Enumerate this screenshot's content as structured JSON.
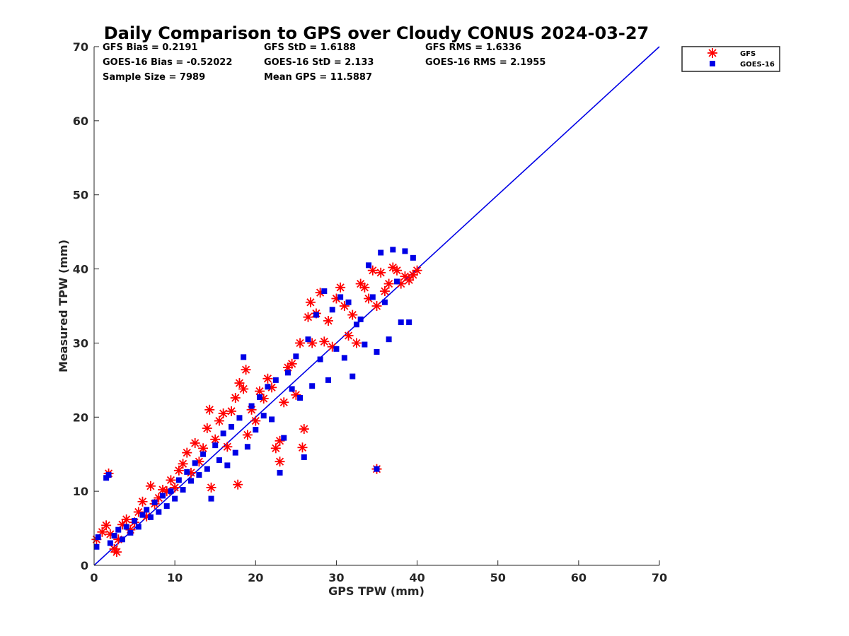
{
  "chart_data": {
    "type": "scatter",
    "title": "Daily Comparison to GPS over Cloudy CONUS 2024-03-27",
    "xlabel": "GPS TPW (mm)",
    "ylabel": "Measured TPW (mm)",
    "xlim": [
      0,
      70
    ],
    "ylim": [
      0,
      70
    ],
    "xticks": [
      0,
      10,
      20,
      30,
      40,
      50,
      60,
      70
    ],
    "yticks": [
      0,
      10,
      20,
      30,
      40,
      50,
      60,
      70
    ],
    "grid": false,
    "legend_position": "outside top-right",
    "stats": [
      [
        "GFS Bias = 0.2191",
        "GFS StD = 1.6188",
        "GFS RMS = 1.6336"
      ],
      [
        "GOES-16 Bias = -0.52022",
        "GOES-16 StD = 2.133",
        "GOES-16 RMS = 2.1955"
      ],
      [
        "Sample Size = 7989",
        "Mean GPS = 11.5887",
        ""
      ]
    ],
    "reference_line": {
      "x": [
        0,
        70
      ],
      "y": [
        0,
        70
      ],
      "color": "#0000e6"
    },
    "series": [
      {
        "name": "GFS",
        "marker": "asterisk",
        "color": "#ff0000",
        "points": [
          [
            0.3,
            3.5
          ],
          [
            1,
            4.5
          ],
          [
            1.5,
            5.4
          ],
          [
            1.8,
            12.4
          ],
          [
            2,
            4.2
          ],
          [
            2.5,
            2.2
          ],
          [
            2.8,
            1.8
          ],
          [
            3,
            3.5
          ],
          [
            3.5,
            5.5
          ],
          [
            4,
            6.2
          ],
          [
            4.5,
            4.8
          ],
          [
            5,
            5.8
          ],
          [
            5.5,
            7.2
          ],
          [
            6,
            8.6
          ],
          [
            6.5,
            6.6
          ],
          [
            7,
            10.7
          ],
          [
            7.5,
            8.3
          ],
          [
            8,
            9.1
          ],
          [
            8.5,
            10.2
          ],
          [
            9,
            10
          ],
          [
            9.5,
            11.5
          ],
          [
            10,
            10.5
          ],
          [
            10.5,
            12.8
          ],
          [
            11,
            13.7
          ],
          [
            11.5,
            15.2
          ],
          [
            12,
            12.5
          ],
          [
            12.5,
            16.5
          ],
          [
            13,
            14
          ],
          [
            13.5,
            15.8
          ],
          [
            14,
            18.5
          ],
          [
            14.3,
            21
          ],
          [
            14.5,
            10.5
          ],
          [
            15,
            17
          ],
          [
            15.5,
            19.5
          ],
          [
            16,
            20.5
          ],
          [
            16.5,
            16
          ],
          [
            17,
            20.8
          ],
          [
            17.5,
            22.6
          ],
          [
            17.8,
            10.9
          ],
          [
            18,
            24.6
          ],
          [
            18.5,
            23.8
          ],
          [
            18.8,
            26.4
          ],
          [
            19,
            17.6
          ],
          [
            19.5,
            21
          ],
          [
            20,
            19.5
          ],
          [
            20.5,
            23.5
          ],
          [
            21,
            22.5
          ],
          [
            21.5,
            25.2
          ],
          [
            22,
            24
          ],
          [
            22.5,
            15.8
          ],
          [
            23,
            14
          ],
          [
            23,
            16.8
          ],
          [
            23.5,
            22
          ],
          [
            24,
            26.7
          ],
          [
            24.5,
            27.2
          ],
          [
            25,
            23
          ],
          [
            25.5,
            30
          ],
          [
            25.8,
            15.9
          ],
          [
            26,
            18.4
          ],
          [
            26.5,
            33.5
          ],
          [
            26.8,
            35.5
          ],
          [
            27,
            30
          ],
          [
            27.5,
            34
          ],
          [
            28,
            36.8
          ],
          [
            28.5,
            30.2
          ],
          [
            29,
            33
          ],
          [
            29.5,
            29.5
          ],
          [
            30,
            36
          ],
          [
            30.5,
            37.5
          ],
          [
            31,
            35
          ],
          [
            31.5,
            31
          ],
          [
            32,
            33.8
          ],
          [
            32.5,
            30
          ],
          [
            33,
            38
          ],
          [
            33.5,
            37.5
          ],
          [
            34,
            36
          ],
          [
            34.5,
            39.8
          ],
          [
            35,
            35
          ],
          [
            35,
            13
          ],
          [
            35.5,
            39.5
          ],
          [
            36,
            37
          ],
          [
            36.5,
            38
          ],
          [
            37,
            40.2
          ],
          [
            37.5,
            39.8
          ],
          [
            38,
            38
          ],
          [
            38.5,
            39
          ],
          [
            39,
            38.5
          ],
          [
            39.5,
            39.2
          ],
          [
            40,
            39.8
          ]
        ]
      },
      {
        "name": "GOES-16",
        "marker": "square",
        "color": "#0000e6",
        "points": [
          [
            0.3,
            2.5
          ],
          [
            0.5,
            3.8
          ],
          [
            1.5,
            11.8
          ],
          [
            1.8,
            12.2
          ],
          [
            2,
            3
          ],
          [
            2.5,
            4
          ],
          [
            3,
            4.8
          ],
          [
            3.5,
            3.5
          ],
          [
            4,
            5.2
          ],
          [
            4.5,
            4.4
          ],
          [
            5,
            6
          ],
          [
            5.5,
            5.2
          ],
          [
            6,
            6.8
          ],
          [
            6.5,
            7.5
          ],
          [
            7,
            6.5
          ],
          [
            7.5,
            8.5
          ],
          [
            8,
            7.2
          ],
          [
            8.5,
            9.4
          ],
          [
            9,
            8
          ],
          [
            9.5,
            10
          ],
          [
            10,
            9
          ],
          [
            10.5,
            11.5
          ],
          [
            11,
            10.2
          ],
          [
            11.5,
            12.6
          ],
          [
            12,
            11.4
          ],
          [
            12.5,
            13.8
          ],
          [
            13,
            12.2
          ],
          [
            13.5,
            15
          ],
          [
            14,
            13
          ],
          [
            14.5,
            9
          ],
          [
            15,
            16.2
          ],
          [
            15.5,
            14.2
          ],
          [
            16,
            17.8
          ],
          [
            16.5,
            13.5
          ],
          [
            17,
            18.7
          ],
          [
            17.5,
            15.2
          ],
          [
            18,
            19.9
          ],
          [
            18.5,
            28.1
          ],
          [
            19,
            16
          ],
          [
            19.5,
            21.5
          ],
          [
            20,
            18.3
          ],
          [
            20.5,
            22.7
          ],
          [
            21,
            20.2
          ],
          [
            21.5,
            24.1
          ],
          [
            22,
            19.7
          ],
          [
            22.5,
            25
          ],
          [
            23,
            12.5
          ],
          [
            23.5,
            17.2
          ],
          [
            24,
            26
          ],
          [
            24.5,
            23.8
          ],
          [
            25,
            28.2
          ],
          [
            25.5,
            22.6
          ],
          [
            26,
            14.6
          ],
          [
            26.5,
            30.5
          ],
          [
            27,
            24.2
          ],
          [
            27.5,
            33.8
          ],
          [
            28,
            27.8
          ],
          [
            28.5,
            37
          ],
          [
            29,
            25
          ],
          [
            29.5,
            34.5
          ],
          [
            30,
            29.2
          ],
          [
            30.5,
            36.2
          ],
          [
            31,
            28
          ],
          [
            31.5,
            35.5
          ],
          [
            32,
            25.5
          ],
          [
            32.5,
            32.5
          ],
          [
            33,
            33.2
          ],
          [
            33.5,
            29.8
          ],
          [
            34,
            40.5
          ],
          [
            34.5,
            36.2
          ],
          [
            35,
            13
          ],
          [
            35,
            28.8
          ],
          [
            35.5,
            42.2
          ],
          [
            36,
            35.5
          ],
          [
            36.5,
            30.5
          ],
          [
            37,
            42.6
          ],
          [
            37.5,
            38.3
          ],
          [
            38,
            32.8
          ],
          [
            38.5,
            42.4
          ],
          [
            39,
            32.8
          ],
          [
            39.5,
            41.5
          ]
        ]
      }
    ]
  }
}
